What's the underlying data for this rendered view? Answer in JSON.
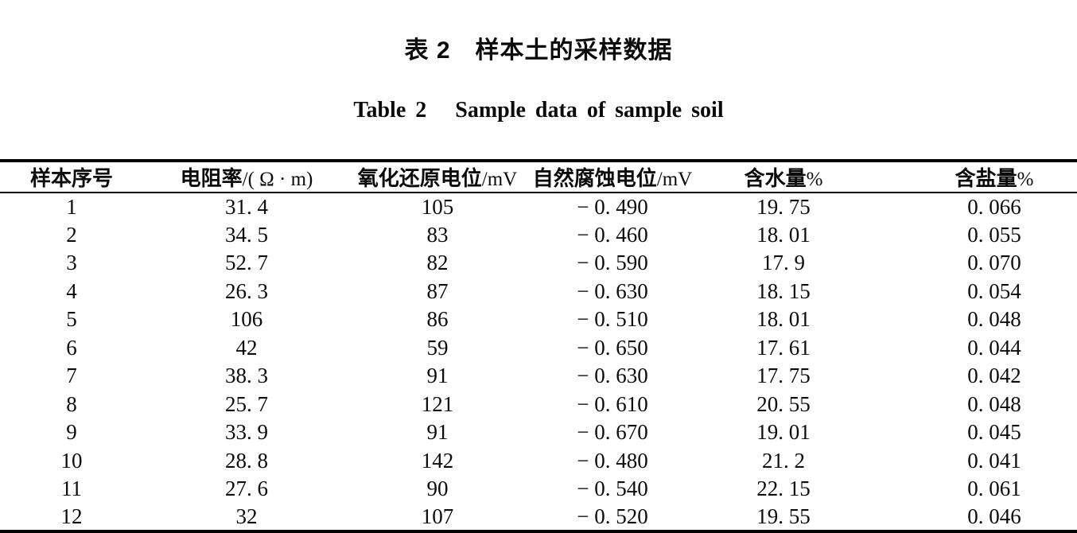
{
  "titles": {
    "zh": "表 2　样本土的采样数据",
    "en": "Table 2   Sample data of sample soil"
  },
  "table": {
    "columns": [
      {
        "text": "样本序号",
        "unit": ""
      },
      {
        "text": "电阻率",
        "unit": "/( Ω · m)"
      },
      {
        "text": "氧化还原电位",
        "unit": "/mV"
      },
      {
        "text": "自然腐蚀电位",
        "unit": "/mV"
      },
      {
        "text": "含水量",
        "unit": "%"
      },
      {
        "text": "含盐量",
        "unit": "%"
      }
    ],
    "rows": [
      [
        "1",
        "31. 4",
        "105",
        "− 0. 490",
        "19. 75",
        "0. 066"
      ],
      [
        "2",
        "34. 5",
        "83",
        "− 0. 460",
        "18. 01",
        "0. 055"
      ],
      [
        "3",
        "52. 7",
        "82",
        "− 0. 590",
        "17. 9",
        "0. 070"
      ],
      [
        "4",
        "26. 3",
        "87",
        "− 0. 630",
        "18. 15",
        "0. 054"
      ],
      [
        "5",
        "106",
        "86",
        "− 0. 510",
        "18. 01",
        "0. 048"
      ],
      [
        "6",
        "42",
        "59",
        "− 0. 650",
        "17. 61",
        "0. 044"
      ],
      [
        "7",
        "38. 3",
        "91",
        "− 0. 630",
        "17. 75",
        "0. 042"
      ],
      [
        "8",
        "25. 7",
        "121",
        "− 0. 610",
        "20. 55",
        "0. 048"
      ],
      [
        "9",
        "33. 9",
        "91",
        "− 0. 670",
        "19. 01",
        "0. 045"
      ],
      [
        "10",
        "28. 8",
        "142",
        "− 0. 480",
        "21. 2",
        "0. 041"
      ],
      [
        "11",
        "27. 6",
        "90",
        "− 0. 540",
        "22. 15",
        "0. 061"
      ],
      [
        "12",
        "32",
        "107",
        "− 0. 520",
        "19. 55",
        "0. 046"
      ]
    ]
  },
  "colors": {
    "text": "#0b0b0b",
    "rule": "#000000",
    "background": "#ffffff"
  }
}
